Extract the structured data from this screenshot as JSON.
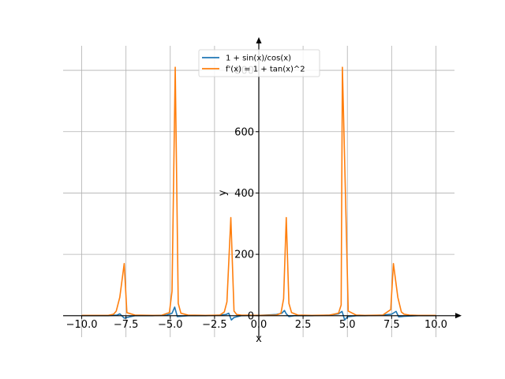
{
  "chart_data": {
    "type": "line",
    "xlabel": "x",
    "ylabel": "y",
    "xlim": [
      -11.05,
      11.05
    ],
    "ylim": [
      -70,
      880
    ],
    "grid": true,
    "legend_position": "top-center",
    "x_ticks": [
      -10,
      -7.5,
      -5,
      -2.5,
      0,
      2.5,
      5,
      7.5,
      10
    ],
    "x_tick_labels": [
      "−10.0",
      "−7.5",
      "−5.0",
      "−2.5",
      "0.0",
      "2.5",
      "5.0",
      "7.5",
      "10.0"
    ],
    "y_ticks": [
      0,
      200,
      400,
      600,
      800
    ],
    "y_tick_labels": [
      "0",
      "200",
      "400",
      "600",
      "800"
    ],
    "series": [
      {
        "name": "1 + sin(x)/cos(x)",
        "color": "#1f77b4",
        "x": [
          -10,
          -9,
          -8.5,
          -8,
          -7.85,
          -7.6,
          -7.3,
          -7,
          -6,
          -5.2,
          -4.9,
          -4.75,
          -4.6,
          -4.4,
          -4,
          -3,
          -2.2,
          -1.85,
          -1.7,
          -1.55,
          -1.4,
          -1,
          0,
          1,
          1.3,
          1.45,
          1.55,
          1.7,
          2,
          3,
          4,
          4.5,
          4.7,
          4.85,
          5,
          5.5,
          6,
          7,
          7.5,
          7.75,
          7.9,
          8.2,
          9,
          10
        ],
        "y": [
          0,
          0,
          0,
          2,
          6,
          -8,
          -4,
          0,
          0,
          2,
          8,
          28,
          -3,
          -2,
          0,
          0,
          2,
          4,
          8,
          -14,
          -6,
          0,
          1,
          4,
          8,
          17,
          6,
          -3,
          0,
          0,
          2,
          6,
          14,
          -14,
          -4,
          0,
          0,
          2,
          5,
          14,
          -4,
          -2,
          0,
          0
        ]
      },
      {
        "name": "f'(x) = 1 + tan(x)^2",
        "color": "#ff7f0e",
        "x": [
          -10,
          -9,
          -8.5,
          -8.2,
          -8.05,
          -7.85,
          -7.6,
          -7.45,
          -7,
          -6,
          -5.5,
          -5.05,
          -4.9,
          -4.72,
          -4.55,
          -4.4,
          -4,
          -3,
          -2.2,
          -1.95,
          -1.8,
          -1.58,
          -1.4,
          -1.25,
          -1,
          0,
          1,
          1.25,
          1.4,
          1.55,
          1.7,
          1.85,
          2.2,
          3,
          4,
          4.5,
          4.65,
          4.72,
          5.05,
          5.5,
          6,
          7,
          7.45,
          7.6,
          7.85,
          8.05,
          8.2,
          8.5,
          9,
          10
        ],
        "y": [
          1,
          1,
          1,
          5,
          15,
          60,
          170,
          10,
          2,
          1,
          1,
          10,
          80,
          810,
          40,
          8,
          2,
          1,
          2,
          12,
          45,
          320,
          15,
          4,
          2,
          1,
          2,
          8,
          55,
          320,
          40,
          10,
          2,
          1,
          2,
          8,
          35,
          810,
          15,
          2,
          1,
          2,
          20,
          170,
          60,
          12,
          5,
          2,
          1,
          1
        ]
      }
    ]
  }
}
